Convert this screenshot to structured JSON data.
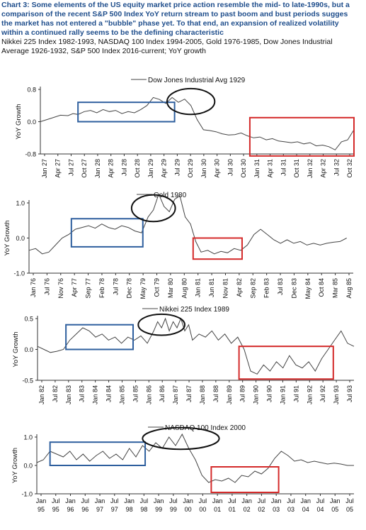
{
  "header": {
    "title_lines": [
      "Chart 3: Some elements of the US equity market price action resemble the mid- to late-1990s, but a",
      "comparison of the recent S&P 500 Index YoY return stream to past boom and bust periods sugges",
      "the market has not entered a \"bubble\" phase yet.  To that end, an expansion of realized volatility",
      "within a continued rally seems to be the defining characteristic"
    ],
    "subtitle_lines": [
      "Nikkei 225 Index 1982-1993, NASDAQ 100 Index 1994-2005, Gold 1976-1985, Dow Jones Industrial",
      "Average 1926-1932, S&P 500 Index 2016-current; YoY growth"
    ]
  },
  "colors": {
    "line": "#444444",
    "blue_box": "#2e5f9e",
    "red_box": "#d42a2a",
    "ellipse": "#111111",
    "title": "#1f4e8c"
  },
  "chart_data": [
    {
      "type": "line",
      "legend": "Dow Jones Industrial Avg 1929",
      "ylabel": "YoY Growth",
      "ylim": [
        -0.8,
        0.8
      ],
      "yticks": [
        "0.8",
        "0.0",
        "-0.8"
      ],
      "ytick_values": [
        0.8,
        0.0,
        -0.8
      ],
      "x_tick_labels": [
        "Jan 27",
        "Apr 27",
        "Jul 27",
        "Oct 27",
        "Jan 28",
        "Apr 28",
        "Jul 28",
        "Oct 28",
        "Jan 29",
        "Apr 29",
        "Jul 29",
        "Oct 29",
        "Jan 30",
        "Apr 30",
        "Jul 30",
        "Oct 30",
        "Jan 31",
        "Apr 31",
        "Jul 31",
        "Oct 31",
        "Jan 32",
        "Apr 32",
        "Jul 32",
        "Oct 32"
      ],
      "x_range": [
        0,
        25
      ],
      "series": [
        {
          "x": [
            0,
            0.8,
            1.6,
            2.2,
            2.6,
            3.0,
            3.5,
            4.0,
            4.5,
            5.0,
            5.5,
            6.0,
            6.5,
            7.0,
            7.5,
            8.0,
            8.5,
            9.0,
            9.5,
            10.0,
            10.5,
            11.0,
            11.5,
            12.0,
            12.5,
            13.0,
            13.5,
            14.0,
            14.5,
            15.0,
            15.5,
            16.0,
            16.5,
            17.0,
            17.5,
            18.0,
            18.5,
            19.0,
            19.5,
            20.0,
            20.5,
            21.0,
            21.5,
            22.0,
            22.5,
            23.0,
            23.5,
            24.0,
            24.5,
            25.0
          ],
          "values": [
            0.0,
            0.08,
            0.16,
            0.15,
            0.2,
            0.18,
            0.25,
            0.28,
            0.22,
            0.3,
            0.25,
            0.28,
            0.2,
            0.25,
            0.22,
            0.3,
            0.4,
            0.6,
            0.55,
            0.45,
            0.6,
            0.48,
            0.56,
            0.4,
            0.05,
            -0.2,
            -0.22,
            -0.25,
            -0.3,
            -0.33,
            -0.32,
            -0.28,
            -0.35,
            -0.4,
            -0.38,
            -0.45,
            -0.42,
            -0.48,
            -0.5,
            -0.52,
            -0.5,
            -0.55,
            -0.52,
            -0.6,
            -0.58,
            -0.62,
            -0.7,
            -0.5,
            -0.45,
            -0.2
          ]
        }
      ],
      "boxes": [
        {
          "color": "blue",
          "x": [
            3.0,
            10.7
          ],
          "y": [
            0.0,
            0.48
          ]
        },
        {
          "color": "red",
          "x": [
            16.7,
            25.0
          ],
          "y": [
            -0.85,
            0.1
          ]
        }
      ],
      "ellipse": {
        "center": [
          12.0,
          0.5
        ],
        "radius": [
          1.9,
          0.32
        ]
      }
    },
    {
      "type": "line",
      "legend": "Gold 1980",
      "ylabel": "YoY Growth",
      "ylim": [
        -1.0,
        1.0
      ],
      "yticks": [
        "1.0",
        "0.0",
        "-1.0"
      ],
      "ytick_values": [
        1.0,
        0.0,
        -1.0
      ],
      "x_tick_labels": [
        "Jan 76",
        "Jul 76",
        "Nov 76",
        "Apr 77",
        "Sep 77",
        "Feb 78",
        "Jul 78",
        "Dec 78",
        "May 79",
        "Oct 79",
        "Mar 80",
        "Aug 80",
        "Jan 81",
        "Jun 81",
        "Nov 81",
        "Apr 82",
        "Sep 82",
        "Feb 83",
        "Jul 83",
        "Dec 83",
        "May 84",
        "Oct 84",
        "Mar 85",
        "Aug 85"
      ],
      "x_range": [
        0,
        24.5
      ],
      "series": [
        {
          "x": [
            0,
            0.5,
            1.0,
            1.5,
            2.0,
            2.5,
            3.0,
            3.5,
            4.0,
            4.5,
            5.0,
            5.5,
            6.0,
            6.5,
            7.0,
            7.5,
            8.0,
            8.5,
            9.0,
            9.4,
            9.8,
            10.2,
            10.6,
            11.0,
            11.4,
            11.8,
            12.2,
            12.6,
            13.0,
            13.5,
            14.0,
            14.5,
            15.0,
            15.5,
            16.0,
            16.5,
            17.0,
            17.5,
            18.0,
            18.5,
            19.0,
            19.5,
            20.0,
            20.5,
            21.0,
            21.5,
            22.0,
            22.5,
            23.0,
            23.5,
            24.0
          ],
          "values": [
            -0.35,
            -0.3,
            -0.45,
            -0.4,
            -0.2,
            0.0,
            0.1,
            0.25,
            0.3,
            0.35,
            0.28,
            0.4,
            0.3,
            0.25,
            0.35,
            0.3,
            0.2,
            0.15,
            0.6,
            0.8,
            1.25,
            0.9,
            0.75,
            1.1,
            1.2,
            0.6,
            0.4,
            -0.1,
            -0.4,
            -0.35,
            -0.45,
            -0.38,
            -0.42,
            -0.3,
            -0.35,
            -0.2,
            0.1,
            0.25,
            0.1,
            -0.05,
            -0.15,
            -0.05,
            -0.15,
            -0.1,
            -0.2,
            -0.15,
            -0.2,
            -0.15,
            -0.12,
            -0.1,
            0.0
          ]
        }
      ],
      "boxes": [
        {
          "color": "blue",
          "x": [
            3.2,
            8.6
          ],
          "y": [
            -0.25,
            0.55
          ]
        },
        {
          "color": "red",
          "x": [
            12.4,
            16.1
          ],
          "y": [
            -0.6,
            0.0
          ]
        }
      ],
      "ellipse": {
        "center": [
          9.4,
          0.85
        ],
        "radius": [
          1.65,
          0.38
        ]
      }
    },
    {
      "type": "line",
      "legend": "Nikkei 225 Index 1989",
      "ylabel": "YoY Growth",
      "ylim": [
        -0.5,
        0.5
      ],
      "yticks": [
        "0.5",
        "0.0",
        "-0.5"
      ],
      "ytick_values": [
        0.5,
        0.0,
        -0.5
      ],
      "x_tick_labels": [
        "Jan 82",
        "Jul 82",
        "Jan 83",
        "Jul 83",
        "Jan 84",
        "Jul 84",
        "Jan 85",
        "Jul 85",
        "Jan 86",
        "Jul 86",
        "Jan 87",
        "Jul 87",
        "Jan 88",
        "Jul 88",
        "Jan 89",
        "Jul 89",
        "Jan 90",
        "Jul 90",
        "Jan 91",
        "Jul 91",
        "Jan 92",
        "Jul 92",
        "Jan 93",
        "Jul 93"
      ],
      "x_range": [
        0,
        24.5
      ],
      "series": [
        {
          "x": [
            0,
            0.5,
            1.0,
            1.5,
            2.0,
            2.5,
            3.0,
            3.5,
            4.0,
            4.5,
            5.0,
            5.5,
            6.0,
            6.5,
            7.0,
            7.5,
            8.0,
            8.5,
            9.0,
            9.3,
            9.6,
            9.9,
            10.2,
            10.5,
            10.8,
            11.1,
            11.4,
            11.7,
            12.0,
            12.5,
            13.0,
            13.5,
            14.0,
            14.5,
            15.0,
            15.5,
            16.0,
            16.5,
            17.0,
            17.5,
            18.0,
            18.5,
            19.0,
            19.5,
            20.0,
            20.5,
            21.0,
            21.5,
            22.0,
            22.5,
            23.0,
            23.5,
            24.0,
            24.5
          ],
          "values": [
            0.05,
            0.0,
            -0.05,
            -0.03,
            0.0,
            0.15,
            0.25,
            0.35,
            0.3,
            0.2,
            0.25,
            0.15,
            0.2,
            0.1,
            0.2,
            0.15,
            0.22,
            0.1,
            0.3,
            0.45,
            0.35,
            0.5,
            0.3,
            0.45,
            0.35,
            0.5,
            0.3,
            0.4,
            0.15,
            0.25,
            0.2,
            0.3,
            0.15,
            0.25,
            0.1,
            0.2,
            0.0,
            -0.35,
            -0.4,
            -0.25,
            -0.35,
            -0.2,
            -0.3,
            -0.1,
            -0.25,
            -0.3,
            -0.2,
            -0.35,
            -0.15,
            0.0,
            0.15,
            0.3,
            0.1,
            0.05
          ]
        }
      ],
      "boxes": [
        {
          "color": "blue",
          "x": [
            2.2,
            7.4
          ],
          "y": [
            0.0,
            0.4
          ]
        },
        {
          "color": "red",
          "x": [
            15.6,
            22.9
          ],
          "y": [
            -0.48,
            0.05
          ]
        }
      ],
      "ellipse": {
        "center": [
          9.6,
          0.4
        ],
        "radius": [
          1.8,
          0.17
        ]
      }
    },
    {
      "type": "line",
      "legend": "NASDAQ 100 Index 2000",
      "ylabel": "YoY Growth",
      "ylim": [
        -1.0,
        1.0
      ],
      "yticks": [
        "1.0",
        "0.0",
        "-1.0"
      ],
      "ytick_values": [
        1.0,
        0.0,
        -1.0
      ],
      "x_tick_labels": [
        "Jan 95",
        "Jul 95",
        "Jan 96",
        "Jul 96",
        "Jan 97",
        "Jul 97",
        "Jan 98",
        "Jul 98",
        "Jan 99",
        "Jul 99",
        "Jan 00",
        "Jul 00",
        "Jan 01",
        "Jul 01",
        "Jan 02",
        "Jul 02",
        "Jan 03",
        "Jul 03",
        "Jan 04",
        "Jul 04",
        "Jan 05",
        "Jul 05"
      ],
      "x_range": [
        0,
        24
      ],
      "series": [
        {
          "x": [
            0,
            0.5,
            1.0,
            1.5,
            2.0,
            2.5,
            3.0,
            3.5,
            4.0,
            4.5,
            5.0,
            5.5,
            6.0,
            6.5,
            7.0,
            7.5,
            8.0,
            8.5,
            9.0,
            9.5,
            10.0,
            10.5,
            11.0,
            11.5,
            12.0,
            12.5,
            13.0,
            13.5,
            14.0,
            14.5,
            15.0,
            15.5,
            16.0,
            16.5,
            17.0,
            17.5,
            18.0,
            18.5,
            19.0,
            19.5,
            20.0,
            20.5,
            21.0,
            21.5,
            22.0,
            22.5,
            23.0,
            23.5,
            24.0
          ],
          "values": [
            0.1,
            0.2,
            0.5,
            0.4,
            0.3,
            0.5,
            0.2,
            0.4,
            0.15,
            0.35,
            0.5,
            0.25,
            0.4,
            0.2,
            0.6,
            0.3,
            0.7,
            0.5,
            0.8,
            0.6,
            1.0,
            0.7,
            1.1,
            0.6,
            0.2,
            -0.35,
            -0.6,
            -0.5,
            -0.55,
            -0.45,
            -0.6,
            -0.35,
            -0.4,
            -0.2,
            -0.3,
            -0.1,
            0.25,
            0.5,
            0.35,
            0.15,
            0.2,
            0.1,
            0.15,
            0.1,
            0.05,
            0.08,
            0.05,
            0.0,
            0.0
          ]
        }
      ],
      "boxes": [
        {
          "color": "blue",
          "x": [
            1.0,
            8.2
          ],
          "y": [
            0.0,
            0.82
          ]
        },
        {
          "color": "red",
          "x": [
            13.2,
            18.3
          ],
          "y": [
            -0.95,
            -0.05
          ]
        }
      ],
      "ellipse": {
        "center": [
          10.9,
          0.95
        ],
        "radius": [
          2.9,
          0.38
        ]
      }
    }
  ]
}
